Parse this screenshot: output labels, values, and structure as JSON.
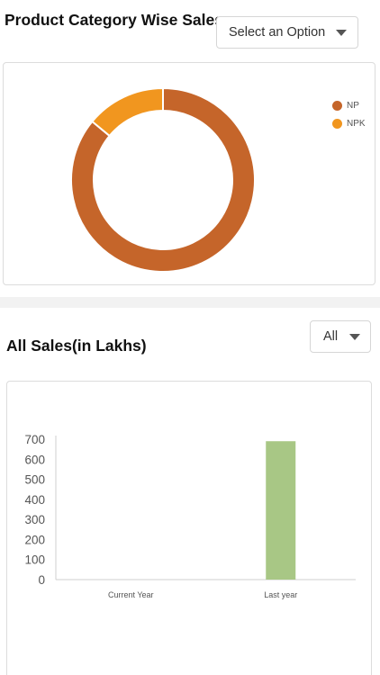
{
  "section1": {
    "title": "Product Category Wise Sales",
    "select_label": "Select an Option"
  },
  "section2": {
    "title": "All Sales(in Lakhs)",
    "select_label": "All"
  },
  "colors": {
    "np": "#c5652a",
    "npk": "#f1961f",
    "bar": "#a8c785"
  },
  "chart_data": [
    {
      "type": "pie",
      "subtype": "donut",
      "labels": [
        "NP",
        "NPK"
      ],
      "values": [
        86,
        14
      ],
      "legend": "top-right"
    },
    {
      "type": "bar",
      "categories": [
        "Current Year",
        "Last year"
      ],
      "values": [
        0,
        690
      ],
      "yticks": [
        "0",
        "100",
        "200",
        "300",
        "400",
        "500",
        "600",
        "700"
      ],
      "ylim": [
        0,
        700
      ],
      "grid": false
    }
  ]
}
